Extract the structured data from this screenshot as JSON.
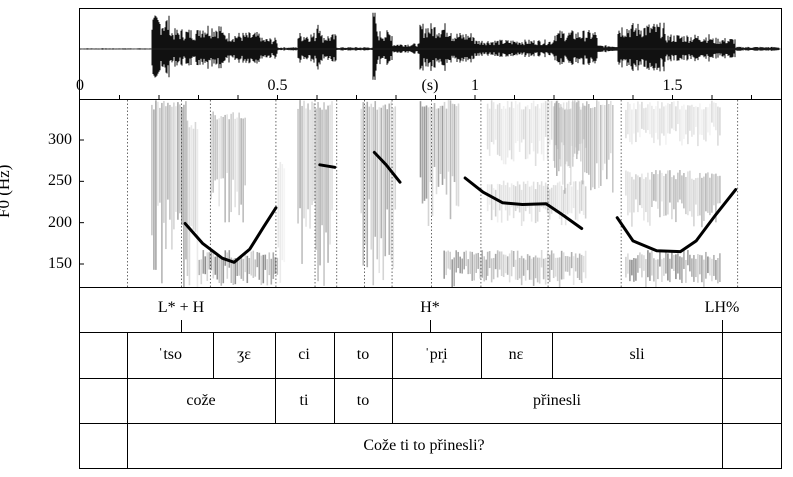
{
  "waveform": {
    "time_ticks": [
      {
        "label": "0",
        "t": 0
      },
      {
        "label": "0.5",
        "t": 0.5
      },
      {
        "label": "1",
        "t": 1.0
      },
      {
        "label": "1.5",
        "t": 1.5
      }
    ],
    "unit_label": "(s)"
  },
  "pitch": {
    "axis_title": "F0 (Hz)",
    "y_ticks": [
      "300",
      "250",
      "200",
      "150"
    ]
  },
  "tiers": {
    "tones": [
      "L* + H",
      "H*",
      "LH%"
    ],
    "syllables": [
      "ˈtso",
      "ʒɛ",
      "ci",
      "to",
      "ˈpr̝i",
      "nɛ",
      "sli"
    ],
    "words": [
      "cože",
      "ti",
      "to",
      "přinesli"
    ],
    "sentence": "Cože ti to přinesli?"
  },
  "chart_data": {
    "type": "line",
    "x_unit": "s",
    "y_unit": "Hz",
    "xlim": [
      0,
      1.78
    ],
    "ylim": [
      130,
      345
    ],
    "y_ticks": [
      300,
      250,
      200,
      150
    ],
    "x_ticks": [
      0,
      0.5,
      1,
      1.5
    ],
    "f0_contour": [
      {
        "x": [
          0.266,
          0.31,
          0.36,
          0.39,
          0.43,
          0.465,
          0.496
        ],
        "y": [
          199,
          175,
          157,
          152,
          168,
          195,
          218
        ]
      },
      {
        "x": [
          0.607,
          0.645
        ],
        "y": [
          270,
          267
        ]
      },
      {
        "x": [
          0.745,
          0.775,
          0.81
        ],
        "y": [
          285,
          270,
          249
        ]
      },
      {
        "x": [
          0.975,
          1.02,
          1.07,
          1.12,
          1.18,
          1.22,
          1.27
        ],
        "y": [
          254,
          237,
          224,
          222,
          223,
          210,
          193
        ]
      },
      {
        "x": [
          1.36,
          1.4,
          1.46,
          1.52,
          1.56,
          1.61,
          1.66
        ],
        "y": [
          206,
          178,
          166,
          165,
          178,
          210,
          240
        ]
      }
    ]
  }
}
